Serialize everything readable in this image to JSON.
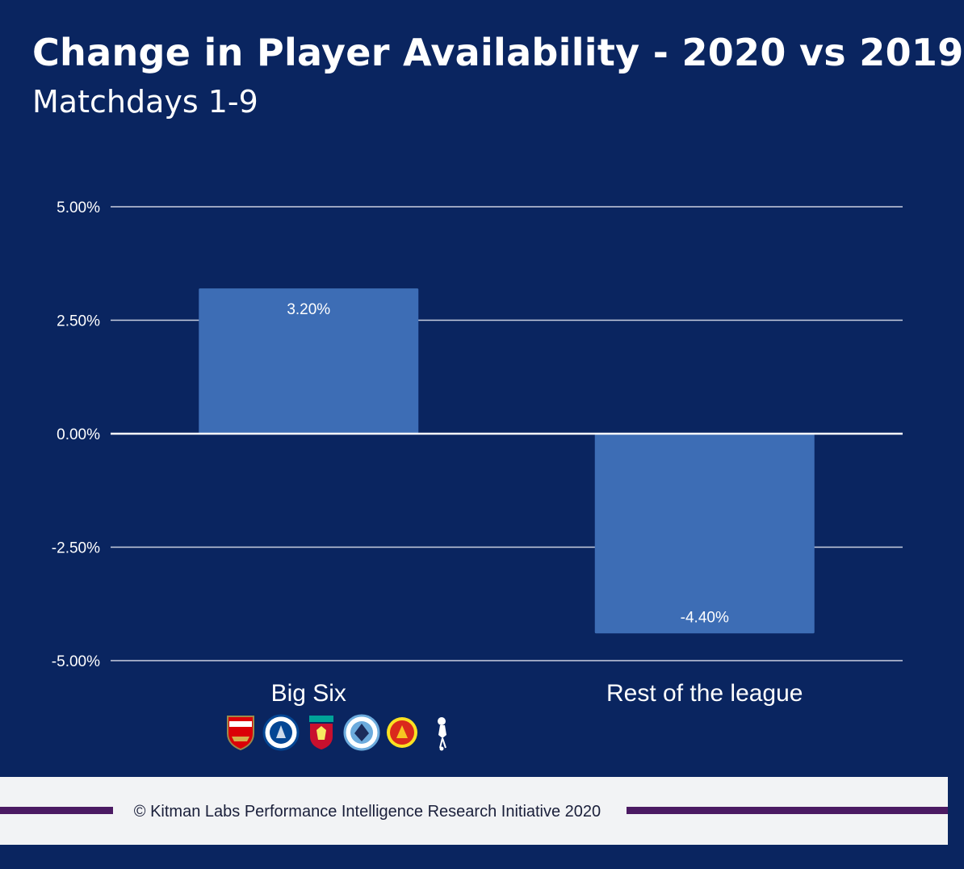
{
  "title": "Change in Player Availability - 2020 vs 2019",
  "subtitle": "Matchdays 1-9",
  "chart_data": {
    "type": "bar",
    "categories": [
      "Big Six",
      "Rest of the league"
    ],
    "values": [
      3.2,
      -4.4
    ],
    "data_labels": [
      "3.20%",
      "-4.40%"
    ],
    "ylim": [
      -5,
      5
    ],
    "yticks": [
      5,
      2.5,
      0,
      -2.5,
      -5
    ],
    "ytick_labels": [
      "5.00%",
      "2.50%",
      "0.00%",
      "-2.50%",
      "-5.00%"
    ],
    "grid": true,
    "bar_color": "#3d6db5",
    "grid_color": "#c9cfe0",
    "zero_line_color": "#ffffff"
  },
  "crests": [
    "arsenal-crest",
    "chelsea-crest",
    "liverpool-crest",
    "manchester-city-crest",
    "manchester-united-crest",
    "tottenham-crest"
  ],
  "colors": {
    "background": "#0a2560",
    "footer_band": "#f2f3f5",
    "footer_line": "#4b1a63"
  },
  "footer": {
    "text": "© Kitman Labs Performance Intelligence Research Initiative 2020"
  }
}
